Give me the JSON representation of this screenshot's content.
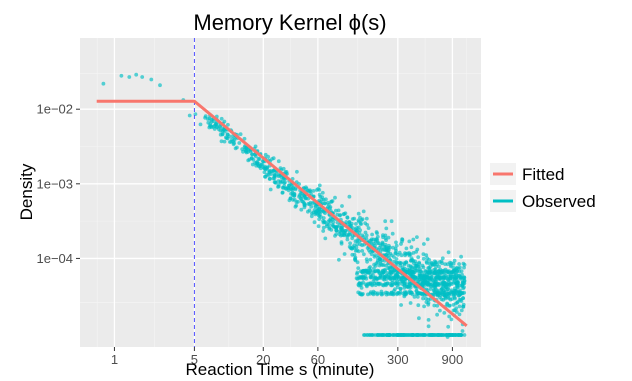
{
  "chart_data": {
    "type": "scatter",
    "title": "Memory Kernel ϕ(s)",
    "xlabel": "Reaction Time s (minute)",
    "ylabel": "Density",
    "x_scale": "log10",
    "y_scale": "log10",
    "xlim": [
      0.5,
      1600
    ],
    "ylim": [
      6.5e-06,
      0.09
    ],
    "x_ticks": [
      1,
      5,
      20,
      60,
      300,
      900
    ],
    "x_tick_labels": [
      "1",
      "5",
      "20",
      "60",
      "300",
      "900"
    ],
    "y_ticks": [
      0.0001,
      0.001,
      0.01
    ],
    "y_tick_labels": [
      "1e−04",
      "1e−03",
      "1e−02"
    ],
    "grid": true,
    "legend_position": "right",
    "vertical_reference_line": {
      "x": 5,
      "style": "dashed",
      "color": "#4d4dff"
    },
    "series": [
      {
        "name": "Fitted",
        "kind": "line",
        "color": "#f8766d",
        "x": [
          0.7,
          5,
          1200
        ],
        "y": [
          0.0128,
          0.0128,
          1.25e-05
        ]
      },
      {
        "name": "Observed",
        "kind": "points",
        "color": "#00bfc4",
        "description": "about 1,000 observed densities scattered around the fitted line; a floor band of points at about 3e-05 to 7e-05 for s greater than about 130, and a separate row of points below the plot window for s between about 150 and 1200",
        "x": [
          0.8,
          1.0,
          1.3,
          1.6,
          2.0,
          2.5,
          3.0,
          4.0,
          5.5,
          6.5,
          8,
          10,
          12,
          15,
          18,
          22,
          28,
          35,
          45,
          60,
          80,
          100,
          130,
          170,
          220,
          300,
          400,
          550,
          750,
          1000
        ],
        "y": [
          0.022,
          0.028,
          0.027,
          0.029,
          0.025,
          0.022,
          0.018,
          0.012,
          0.0068,
          0.0072,
          0.0062,
          0.0042,
          0.0035,
          0.0026,
          0.0019,
          0.0016,
          0.0012,
          0.0009,
          0.00068,
          0.00048,
          0.00035,
          0.00027,
          0.0002,
          0.00015,
          0.00011,
          8.5e-05,
          6.5e-05,
          5e-05,
          4.5e-05,
          3.5e-05
        ]
      }
    ]
  }
}
